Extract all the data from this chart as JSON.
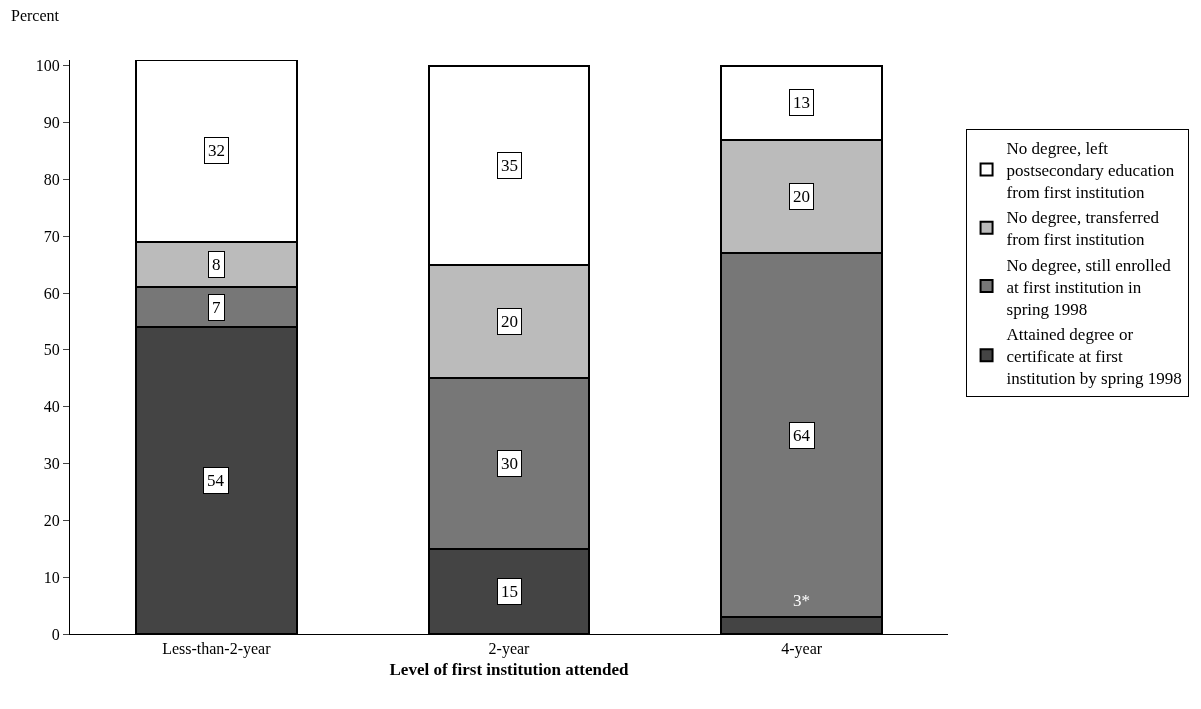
{
  "chart_data": {
    "type": "bar",
    "stacked": true,
    "xlabel": "Level of first institution attended",
    "ylabel": "Percent",
    "categories": [
      "Less-than-2-year",
      "2-year",
      "4-year"
    ],
    "series": [
      {
        "name": "Attained degree or certificate at first institution by spring 1998",
        "color": "#444444",
        "values": [
          54,
          15,
          3
        ],
        "value_labels": [
          "54",
          "15",
          "3*"
        ]
      },
      {
        "name": "No degree, still enrolled at first institution in spring 1998",
        "color": "#777777",
        "values": [
          7,
          30,
          64
        ],
        "value_labels": [
          "7",
          "30",
          "64"
        ]
      },
      {
        "name": "No degree, transferred from first institution",
        "color": "#bbbbbb",
        "values": [
          8,
          20,
          20
        ],
        "value_labels": [
          "8",
          "20",
          "20"
        ]
      },
      {
        "name": "No degree, left postsecondary education from first institution",
        "color": "#ffffff",
        "values": [
          32,
          35,
          13
        ],
        "value_labels": [
          "32",
          "35",
          "13"
        ]
      }
    ],
    "ylim": [
      0,
      101
    ],
    "yticks": [
      0,
      10,
      20,
      30,
      40,
      50,
      60,
      70,
      80,
      90,
      100
    ],
    "grid": false,
    "legend": "right"
  }
}
